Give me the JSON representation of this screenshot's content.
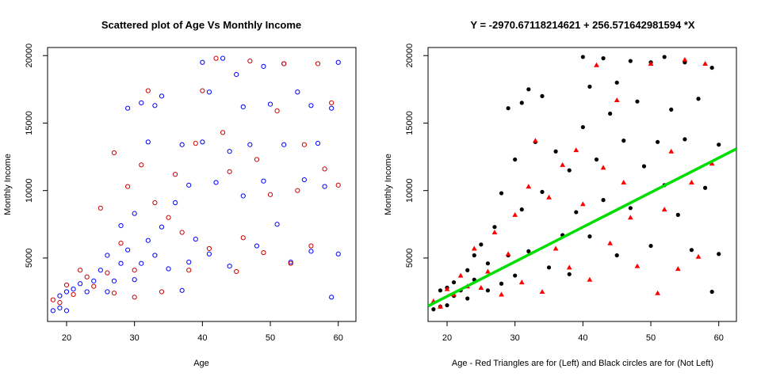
{
  "chart_data": [
    {
      "type": "scatter",
      "title": "Scattered plot of Age Vs Monthly Income",
      "xlabel": "Age",
      "ylabel": "Monthly Income",
      "xlim": [
        17.2,
        62.6
      ],
      "ylim": [
        300,
        20600
      ],
      "xticks": [
        20,
        30,
        40,
        50,
        60
      ],
      "yticks": [
        5000,
        10000,
        15000,
        20000
      ],
      "grid": false,
      "series": [
        {
          "color": "#0000ff",
          "marker": "open-circle",
          "points": [
            [
              18,
              1100
            ],
            [
              19,
              1300
            ],
            [
              19,
              2200
            ],
            [
              20,
              1100
            ],
            [
              20,
              2500
            ],
            [
              21,
              2700
            ],
            [
              22,
              3100
            ],
            [
              23,
              2500
            ],
            [
              24,
              3300
            ],
            [
              25,
              4100
            ],
            [
              26,
              2500
            ],
            [
              26,
              5200
            ],
            [
              27,
              3300
            ],
            [
              28,
              4600
            ],
            [
              28,
              7400
            ],
            [
              29,
              16100
            ],
            [
              29,
              5600
            ],
            [
              30,
              8300
            ],
            [
              30,
              3400
            ],
            [
              31,
              16500
            ],
            [
              31,
              4600
            ],
            [
              32,
              13600
            ],
            [
              32,
              6300
            ],
            [
              33,
              16300
            ],
            [
              33,
              5200
            ],
            [
              34,
              17000
            ],
            [
              34,
              7300
            ],
            [
              35,
              4200
            ],
            [
              36,
              9100
            ],
            [
              37,
              13400
            ],
            [
              37,
              2600
            ],
            [
              38,
              10400
            ],
            [
              38,
              4700
            ],
            [
              39,
              6400
            ],
            [
              40,
              19500
            ],
            [
              40,
              13600
            ],
            [
              41,
              17300
            ],
            [
              41,
              5300
            ],
            [
              42,
              10600
            ],
            [
              43,
              19800
            ],
            [
              44,
              12900
            ],
            [
              44,
              4400
            ],
            [
              45,
              18600
            ],
            [
              46,
              16200
            ],
            [
              46,
              9600
            ],
            [
              47,
              13400
            ],
            [
              48,
              5900
            ],
            [
              49,
              19200
            ],
            [
              49,
              10700
            ],
            [
              50,
              16400
            ],
            [
              51,
              7500
            ],
            [
              52,
              19400
            ],
            [
              52,
              13400
            ],
            [
              53,
              4700
            ],
            [
              54,
              17300
            ],
            [
              55,
              10800
            ],
            [
              56,
              16300
            ],
            [
              56,
              5500
            ],
            [
              57,
              13500
            ],
            [
              58,
              10300
            ],
            [
              59,
              16100
            ],
            [
              59,
              2100
            ],
            [
              60,
              19500
            ],
            [
              60,
              5300
            ]
          ]
        },
        {
          "color": "#cc0000",
          "marker": "open-circle",
          "points": [
            [
              18,
              1900
            ],
            [
              19,
              1700
            ],
            [
              20,
              3000
            ],
            [
              21,
              2300
            ],
            [
              22,
              4100
            ],
            [
              23,
              3600
            ],
            [
              24,
              2900
            ],
            [
              25,
              8700
            ],
            [
              26,
              3900
            ],
            [
              27,
              12800
            ],
            [
              27,
              2400
            ],
            [
              28,
              6100
            ],
            [
              29,
              10300
            ],
            [
              30,
              4100
            ],
            [
              30,
              2100
            ],
            [
              31,
              11900
            ],
            [
              32,
              17400
            ],
            [
              33,
              9100
            ],
            [
              34,
              2500
            ],
            [
              35,
              8000
            ],
            [
              36,
              11200
            ],
            [
              37,
              6900
            ],
            [
              38,
              4100
            ],
            [
              39,
              13500
            ],
            [
              40,
              17400
            ],
            [
              41,
              5700
            ],
            [
              42,
              19800
            ],
            [
              43,
              14300
            ],
            [
              44,
              11400
            ],
            [
              45,
              4000
            ],
            [
              46,
              6500
            ],
            [
              47,
              19600
            ],
            [
              48,
              12300
            ],
            [
              49,
              5400
            ],
            [
              50,
              9700
            ],
            [
              51,
              15900
            ],
            [
              52,
              19400
            ],
            [
              53,
              4600
            ],
            [
              54,
              10000
            ],
            [
              55,
              13400
            ],
            [
              56,
              5900
            ],
            [
              57,
              19400
            ],
            [
              58,
              11600
            ],
            [
              59,
              16500
            ],
            [
              60,
              10400
            ]
          ]
        }
      ]
    },
    {
      "type": "scatter",
      "title": "Y =  -2970.67118214621 + 256.571642981594 *X",
      "xlabel": "Age - Red Triangles are for (Left) and Black circles are for (Not Left)",
      "ylabel": "Monthly Income",
      "xlim": [
        17.2,
        62.6
      ],
      "ylim": [
        300,
        20600
      ],
      "xticks": [
        20,
        30,
        40,
        50,
        60
      ],
      "yticks": [
        5000,
        10000,
        15000,
        20000
      ],
      "grid": false,
      "regression_line": {
        "intercept": -2970.67118214621,
        "slope": 256.571642981594,
        "color": "#00dd00"
      },
      "series": [
        {
          "color": "#000000",
          "marker": "filled-circle",
          "points": [
            [
              18,
              1200
            ],
            [
              19,
              1400
            ],
            [
              19,
              2600
            ],
            [
              20,
              1500
            ],
            [
              20,
              2800
            ],
            [
              21,
              2200
            ],
            [
              21,
              3200
            ],
            [
              22,
              2600
            ],
            [
              23,
              4100
            ],
            [
              23,
              2000
            ],
            [
              24,
              5200
            ],
            [
              24,
              3400
            ],
            [
              25,
              6000
            ],
            [
              26,
              2600
            ],
            [
              26,
              4600
            ],
            [
              27,
              7300
            ],
            [
              28,
              3100
            ],
            [
              28,
              9800
            ],
            [
              29,
              16100
            ],
            [
              29,
              5200
            ],
            [
              30,
              12300
            ],
            [
              30,
              3700
            ],
            [
              31,
              16500
            ],
            [
              31,
              8600
            ],
            [
              32,
              17500
            ],
            [
              32,
              5500
            ],
            [
              33,
              13600
            ],
            [
              34,
              17000
            ],
            [
              34,
              9900
            ],
            [
              35,
              4300
            ],
            [
              36,
              12900
            ],
            [
              37,
              6700
            ],
            [
              38,
              11500
            ],
            [
              38,
              3800
            ],
            [
              39,
              8400
            ],
            [
              40,
              19900
            ],
            [
              40,
              14700
            ],
            [
              41,
              17700
            ],
            [
              41,
              6600
            ],
            [
              42,
              12300
            ],
            [
              43,
              19800
            ],
            [
              43,
              9300
            ],
            [
              44,
              15700
            ],
            [
              45,
              18000
            ],
            [
              45,
              5200
            ],
            [
              46,
              13700
            ],
            [
              47,
              19600
            ],
            [
              47,
              8700
            ],
            [
              48,
              16600
            ],
            [
              49,
              11800
            ],
            [
              50,
              19500
            ],
            [
              50,
              5900
            ],
            [
              51,
              13600
            ],
            [
              52,
              19900
            ],
            [
              52,
              10400
            ],
            [
              53,
              16000
            ],
            [
              54,
              8200
            ],
            [
              55,
              19500
            ],
            [
              55,
              13800
            ],
            [
              56,
              5600
            ],
            [
              57,
              16800
            ],
            [
              58,
              10200
            ],
            [
              59,
              19100
            ],
            [
              59,
              2500
            ],
            [
              60,
              13400
            ],
            [
              60,
              5300
            ]
          ]
        },
        {
          "color": "#ff0000",
          "marker": "filled-triangle",
          "points": [
            [
              18,
              1800
            ],
            [
              19,
              1400
            ],
            [
              20,
              2700
            ],
            [
              21,
              2300
            ],
            [
              22,
              3700
            ],
            [
              23,
              2900
            ],
            [
              24,
              5700
            ],
            [
              25,
              2800
            ],
            [
              26,
              4000
            ],
            [
              27,
              6900
            ],
            [
              28,
              2300
            ],
            [
              29,
              5300
            ],
            [
              30,
              8200
            ],
            [
              31,
              3200
            ],
            [
              32,
              10300
            ],
            [
              33,
              13700
            ],
            [
              34,
              2500
            ],
            [
              35,
              9500
            ],
            [
              36,
              5700
            ],
            [
              37,
              11900
            ],
            [
              38,
              4300
            ],
            [
              39,
              13000
            ],
            [
              40,
              9000
            ],
            [
              41,
              3400
            ],
            [
              42,
              19300
            ],
            [
              43,
              11700
            ],
            [
              44,
              6100
            ],
            [
              45,
              16700
            ],
            [
              46,
              10600
            ],
            [
              47,
              8000
            ],
            [
              48,
              4400
            ],
            [
              50,
              19400
            ],
            [
              51,
              2400
            ],
            [
              52,
              8600
            ],
            [
              53,
              12900
            ],
            [
              54,
              4200
            ],
            [
              55,
              19700
            ],
            [
              56,
              10600
            ],
            [
              57,
              5100
            ],
            [
              58,
              19400
            ],
            [
              59,
              12000
            ]
          ]
        }
      ]
    }
  ]
}
